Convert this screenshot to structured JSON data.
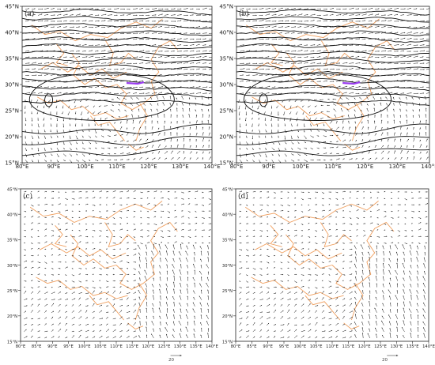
{
  "panels": [
    {
      "id": "a",
      "label": "(a)",
      "lat_ticks": [
        "45°N",
        "40°N",
        "35°N",
        "30°N",
        "25°N",
        "20°N",
        "15°N"
      ],
      "lon_ticks": [
        "80°E",
        "90°E",
        "100°E",
        "110°E",
        "120°E",
        "130°E",
        "140°E"
      ],
      "type": "wind_height"
    },
    {
      "id": "b",
      "label": "(b)",
      "lat_ticks": [
        "45°N",
        "40°N",
        "35°N",
        "30°N",
        "25°N",
        "20°N",
        "15°N"
      ],
      "lon_ticks": [
        "80°E",
        "90°E",
        "100°E",
        "110°E",
        "120°E",
        "130°E",
        "140°E"
      ],
      "type": "wind_height"
    },
    {
      "id": "c",
      "label": "(c)",
      "lat_ticks": [
        "45°N",
        "40°N",
        "35°N",
        "30°N",
        "25°N",
        "20°N",
        "15°N"
      ],
      "lon_ticks": [
        "80°E",
        "85°E",
        "90°E",
        "95°E",
        "100°E",
        "105°E",
        "110°E",
        "115°E",
        "120°E",
        "125°E",
        "130°E",
        "135°E",
        "140°E"
      ],
      "type": "wind",
      "ref_vector": "20"
    },
    {
      "id": "d",
      "label": "(d)",
      "lat_ticks": [
        "45°N",
        "40°N",
        "35°N",
        "30°N",
        "25°N",
        "20°N",
        "15°N"
      ],
      "lon_ticks": [
        "80°E",
        "85°E",
        "90°E",
        "95°E",
        "100°E",
        "105°E",
        "110°E",
        "115°E",
        "120°E",
        "125°E",
        "130°E",
        "135°E",
        "140°E"
      ],
      "type": "wind",
      "ref_vector": "20"
    }
  ],
  "colors": {
    "border": "#f0a060",
    "vector": "#1a1a1a",
    "contour": "#111111",
    "highlight": "#9a3cf0"
  }
}
